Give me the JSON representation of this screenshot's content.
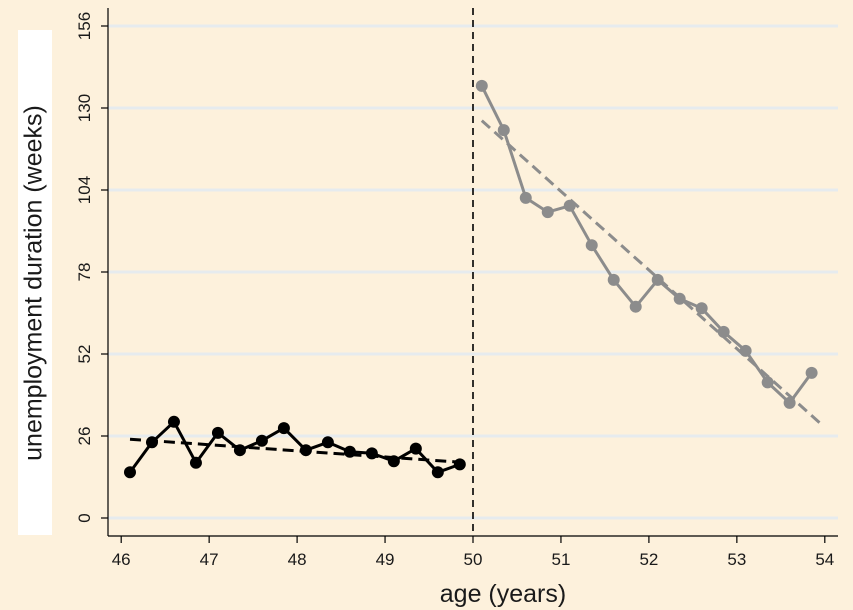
{
  "chart_data": {
    "type": "line",
    "xlabel": "age (years)",
    "ylabel": "unemployment duration (weeks)",
    "xlim": [
      45.85,
      54.15
    ],
    "ylim": [
      0,
      156
    ],
    "x_ticks": [
      46,
      47,
      48,
      49,
      50,
      51,
      52,
      53,
      54
    ],
    "y_ticks": [
      0,
      26,
      52,
      78,
      104,
      130,
      156
    ],
    "grid": "horizontal",
    "cutoff": 50,
    "colors": {
      "background": "#fdf1dc",
      "plot_background": "#fdf1dc",
      "gridline": "#e6ebee",
      "left_series": "#000000",
      "right_series": "#8c8c8c"
    },
    "series": [
      {
        "style": "line-markers",
        "color": "#000000",
        "x": [
          46.1,
          46.35,
          46.6,
          46.85,
          47.1,
          47.35,
          47.6,
          47.85,
          48.1,
          48.35,
          48.6,
          48.85,
          49.1,
          49.35,
          49.6,
          49.85
        ],
        "y": [
          14.5,
          24,
          30.5,
          17.5,
          27,
          21.5,
          24.5,
          28.5,
          21.5,
          24,
          21,
          20.5,
          18,
          22,
          14.5,
          17
        ]
      },
      {
        "style": "line-markers",
        "color": "#8c8c8c",
        "x": [
          50.1,
          50.35,
          50.6,
          50.85,
          51.1,
          51.35,
          51.6,
          51.85,
          52.1,
          52.35,
          52.6,
          52.85,
          53.1,
          53.35,
          53.6,
          53.85
        ],
        "y": [
          137,
          123,
          101.5,
          97,
          99,
          86.5,
          75.5,
          67,
          75.5,
          69.5,
          66.5,
          59,
          53,
          43,
          36.5,
          46
        ]
      },
      {
        "style": "dashed-fit",
        "color": "#000000",
        "x": [
          46.1,
          49.95
        ],
        "y": [
          25,
          17.5
        ]
      },
      {
        "style": "dashed-fit",
        "color": "#8c8c8c",
        "x": [
          50.1,
          53.95
        ],
        "y": [
          126,
          30
        ]
      }
    ]
  }
}
